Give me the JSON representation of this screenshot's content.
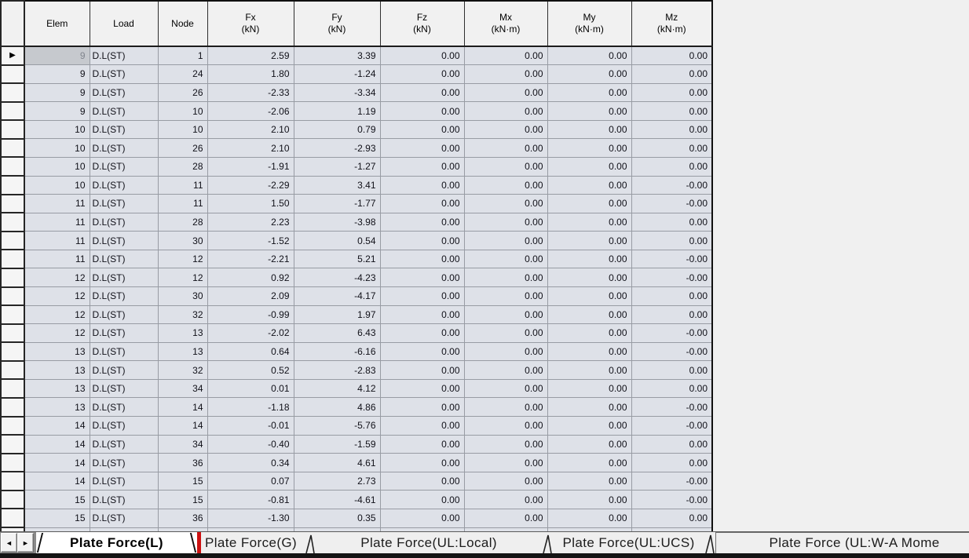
{
  "table": {
    "columns": [
      {
        "key": "elem",
        "label": "Elem",
        "unit": "",
        "align": "right"
      },
      {
        "key": "load",
        "label": "Load",
        "unit": "",
        "align": "left"
      },
      {
        "key": "node",
        "label": "Node",
        "unit": "",
        "align": "right"
      },
      {
        "key": "fx",
        "label": "Fx",
        "unit": "(kN)",
        "align": "right"
      },
      {
        "key": "fy",
        "label": "Fy",
        "unit": "(kN)",
        "align": "right"
      },
      {
        "key": "fz",
        "label": "Fz",
        "unit": "(kN)",
        "align": "right"
      },
      {
        "key": "mx",
        "label": "Mx",
        "unit": "(kN·m)",
        "align": "right"
      },
      {
        "key": "my",
        "label": "My",
        "unit": "(kN·m)",
        "align": "right"
      },
      {
        "key": "mz",
        "label": "Mz",
        "unit": "(kN·m)",
        "align": "right"
      }
    ],
    "rows": [
      [
        "9",
        "D.L(ST)",
        "1",
        "2.59",
        "3.39",
        "0.00",
        "0.00",
        "0.00",
        "0.00"
      ],
      [
        "9",
        "D.L(ST)",
        "24",
        "1.80",
        "-1.24",
        "0.00",
        "0.00",
        "0.00",
        "0.00"
      ],
      [
        "9",
        "D.L(ST)",
        "26",
        "-2.33",
        "-3.34",
        "0.00",
        "0.00",
        "0.00",
        "0.00"
      ],
      [
        "9",
        "D.L(ST)",
        "10",
        "-2.06",
        "1.19",
        "0.00",
        "0.00",
        "0.00",
        "0.00"
      ],
      [
        "10",
        "D.L(ST)",
        "10",
        "2.10",
        "0.79",
        "0.00",
        "0.00",
        "0.00",
        "0.00"
      ],
      [
        "10",
        "D.L(ST)",
        "26",
        "2.10",
        "-2.93",
        "0.00",
        "0.00",
        "0.00",
        "0.00"
      ],
      [
        "10",
        "D.L(ST)",
        "28",
        "-1.91",
        "-1.27",
        "0.00",
        "0.00",
        "0.00",
        "0.00"
      ],
      [
        "10",
        "D.L(ST)",
        "11",
        "-2.29",
        "3.41",
        "0.00",
        "0.00",
        "0.00",
        "-0.00"
      ],
      [
        "11",
        "D.L(ST)",
        "11",
        "1.50",
        "-1.77",
        "0.00",
        "0.00",
        "0.00",
        "-0.00"
      ],
      [
        "11",
        "D.L(ST)",
        "28",
        "2.23",
        "-3.98",
        "0.00",
        "0.00",
        "0.00",
        "0.00"
      ],
      [
        "11",
        "D.L(ST)",
        "30",
        "-1.52",
        "0.54",
        "0.00",
        "0.00",
        "0.00",
        "0.00"
      ],
      [
        "11",
        "D.L(ST)",
        "12",
        "-2.21",
        "5.21",
        "0.00",
        "0.00",
        "0.00",
        "-0.00"
      ],
      [
        "12",
        "D.L(ST)",
        "12",
        "0.92",
        "-4.23",
        "0.00",
        "0.00",
        "0.00",
        "-0.00"
      ],
      [
        "12",
        "D.L(ST)",
        "30",
        "2.09",
        "-4.17",
        "0.00",
        "0.00",
        "0.00",
        "0.00"
      ],
      [
        "12",
        "D.L(ST)",
        "32",
        "-0.99",
        "1.97",
        "0.00",
        "0.00",
        "0.00",
        "0.00"
      ],
      [
        "12",
        "D.L(ST)",
        "13",
        "-2.02",
        "6.43",
        "0.00",
        "0.00",
        "0.00",
        "-0.00"
      ],
      [
        "13",
        "D.L(ST)",
        "13",
        "0.64",
        "-6.16",
        "0.00",
        "0.00",
        "0.00",
        "-0.00"
      ],
      [
        "13",
        "D.L(ST)",
        "32",
        "0.52",
        "-2.83",
        "0.00",
        "0.00",
        "0.00",
        "0.00"
      ],
      [
        "13",
        "D.L(ST)",
        "34",
        "0.01",
        "4.12",
        "0.00",
        "0.00",
        "0.00",
        "0.00"
      ],
      [
        "13",
        "D.L(ST)",
        "14",
        "-1.18",
        "4.86",
        "0.00",
        "0.00",
        "0.00",
        "-0.00"
      ],
      [
        "14",
        "D.L(ST)",
        "14",
        "-0.01",
        "-5.76",
        "0.00",
        "0.00",
        "0.00",
        "-0.00"
      ],
      [
        "14",
        "D.L(ST)",
        "34",
        "-0.40",
        "-1.59",
        "0.00",
        "0.00",
        "0.00",
        "0.00"
      ],
      [
        "14",
        "D.L(ST)",
        "36",
        "0.34",
        "4.61",
        "0.00",
        "0.00",
        "0.00",
        "0.00"
      ],
      [
        "14",
        "D.L(ST)",
        "15",
        "0.07",
        "2.73",
        "0.00",
        "0.00",
        "0.00",
        "-0.00"
      ],
      [
        "15",
        "D.L(ST)",
        "15",
        "-0.81",
        "-4.61",
        "0.00",
        "0.00",
        "0.00",
        "-0.00"
      ],
      [
        "15",
        "D.L(ST)",
        "36",
        "-1.30",
        "0.35",
        "0.00",
        "0.00",
        "0.00",
        "0.00"
      ]
    ],
    "selection": {
      "row": 0,
      "col": 0,
      "marker_icon": "▶"
    }
  },
  "tab_bar": {
    "scroll_left_icon": "◄",
    "scroll_right_icon": "►",
    "highlight_color": "#cc1111",
    "tabs": [
      {
        "label": "Plate Force(L)",
        "active": true,
        "highlighted": true
      },
      {
        "label": "Plate Force(G)",
        "active": false,
        "highlighted": false
      },
      {
        "label": "Plate Force(UL:Local)",
        "active": false,
        "highlighted": false
      },
      {
        "label": "Plate Force(UL:UCS)",
        "active": false,
        "highlighted": false
      },
      {
        "label": "Plate Force (UL:W-A Mome",
        "active": false,
        "highlighted": false,
        "clipped": true
      }
    ]
  }
}
